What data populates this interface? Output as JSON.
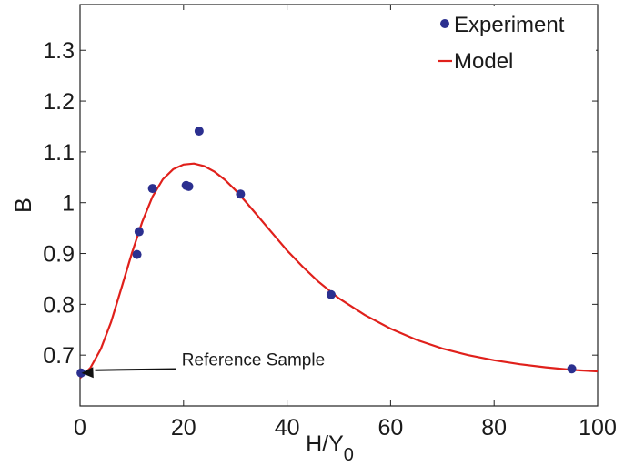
{
  "chart_data": {
    "type": "scatter",
    "xlabel": "H/Y",
    "xlabel_subscript": "0",
    "ylabel": "B",
    "xlim": [
      0,
      100
    ],
    "ylim": [
      0.6,
      1.39
    ],
    "x_ticks": [
      0,
      20,
      40,
      60,
      80,
      100
    ],
    "y_ticks": [
      0.7,
      0.8,
      0.9,
      1,
      1.1,
      1.2,
      1.3
    ],
    "x_tick_labels": [
      "0",
      "20",
      "40",
      "60",
      "80",
      "100"
    ],
    "y_tick_labels": [
      "0.7",
      "0.8",
      "0.9",
      "1",
      "1.1",
      "1.2",
      "1.3"
    ],
    "grid": false,
    "legend_position": "top-right",
    "series": [
      {
        "name": "Experiment",
        "kind": "scatter",
        "color": "#2b2f8f",
        "points": [
          {
            "x": 0.2,
            "y": 0.665
          },
          {
            "x": 11.0,
            "y": 0.898
          },
          {
            "x": 11.4,
            "y": 0.943
          },
          {
            "x": 14.0,
            "y": 1.028
          },
          {
            "x": 20.5,
            "y": 1.034
          },
          {
            "x": 21.0,
            "y": 1.032
          },
          {
            "x": 23.0,
            "y": 1.141
          },
          {
            "x": 31.0,
            "y": 1.017
          },
          {
            "x": 48.5,
            "y": 0.819
          },
          {
            "x": 95.0,
            "y": 0.673
          }
        ]
      },
      {
        "name": "Model",
        "kind": "line",
        "color": "#e0201b",
        "points": [
          {
            "x": 0,
            "y": 0.655
          },
          {
            "x": 2,
            "y": 0.675
          },
          {
            "x": 4,
            "y": 0.712
          },
          {
            "x": 6,
            "y": 0.765
          },
          {
            "x": 8,
            "y": 0.832
          },
          {
            "x": 10,
            "y": 0.9
          },
          {
            "x": 12,
            "y": 0.962
          },
          {
            "x": 14,
            "y": 1.012
          },
          {
            "x": 16,
            "y": 1.046
          },
          {
            "x": 18,
            "y": 1.066
          },
          {
            "x": 20,
            "y": 1.075
          },
          {
            "x": 22,
            "y": 1.077
          },
          {
            "x": 24,
            "y": 1.072
          },
          {
            "x": 26,
            "y": 1.061
          },
          {
            "x": 28,
            "y": 1.045
          },
          {
            "x": 30,
            "y": 1.025
          },
          {
            "x": 32,
            "y": 1.002
          },
          {
            "x": 34,
            "y": 0.978
          },
          {
            "x": 36,
            "y": 0.954
          },
          {
            "x": 38,
            "y": 0.93
          },
          {
            "x": 40,
            "y": 0.906
          },
          {
            "x": 43,
            "y": 0.874
          },
          {
            "x": 46,
            "y": 0.845
          },
          {
            "x": 50,
            "y": 0.812
          },
          {
            "x": 55,
            "y": 0.779
          },
          {
            "x": 60,
            "y": 0.752
          },
          {
            "x": 65,
            "y": 0.73
          },
          {
            "x": 70,
            "y": 0.713
          },
          {
            "x": 75,
            "y": 0.7
          },
          {
            "x": 80,
            "y": 0.69
          },
          {
            "x": 85,
            "y": 0.682
          },
          {
            "x": 90,
            "y": 0.676
          },
          {
            "x": 95,
            "y": 0.671
          },
          {
            "x": 100,
            "y": 0.668
          }
        ]
      }
    ],
    "annotations": [
      {
        "text": "Reference Sample",
        "arrow_to": {
          "x": 0.8,
          "y": 0.665
        },
        "text_at": {
          "x": 20,
          "y": 0.685
        }
      }
    ]
  }
}
